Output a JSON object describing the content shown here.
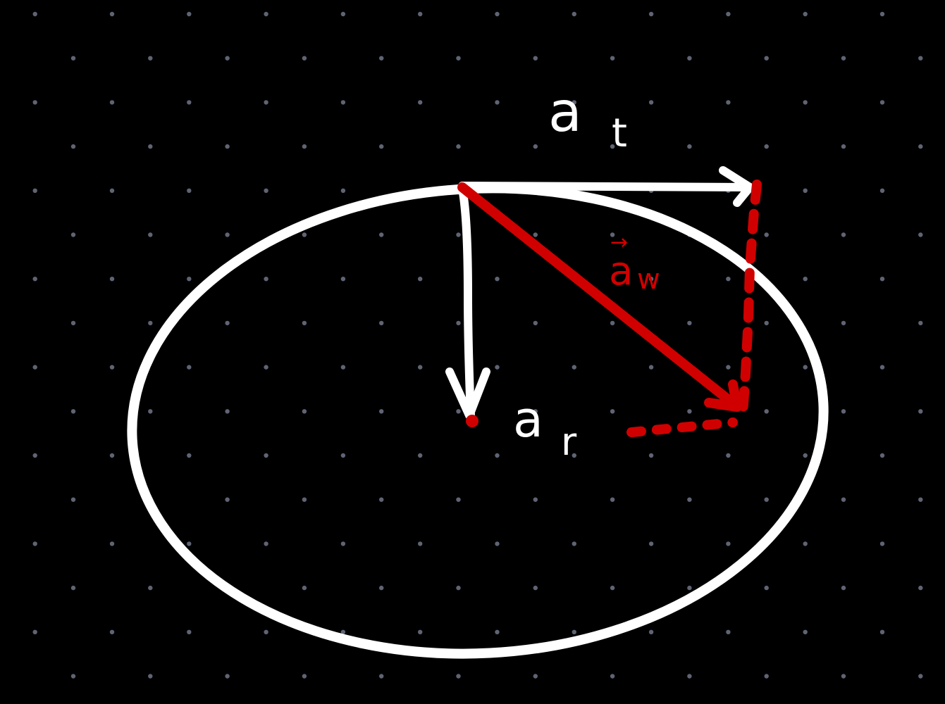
{
  "canvas": {
    "background_color": "#000000",
    "dot_color": "#5f6473",
    "ink_white": "#ffffff",
    "ink_red": "#d10000"
  },
  "labels": {
    "tangential_accel": {
      "main": "a",
      "subscript": "t",
      "color": "#ffffff"
    },
    "total_accel": {
      "main": "a",
      "subscript": "w",
      "arrow_symbol": "→",
      "color": "#d10000"
    },
    "radial_accel": {
      "main": "a",
      "subscript": "r",
      "color": "#ffffff"
    }
  },
  "shapes": {
    "orbit": {
      "kind": "ellipse",
      "stroke": "#ffffff"
    },
    "tangential_vector": {
      "kind": "arrow",
      "stroke": "#ffffff",
      "direction": "right"
    },
    "radial_vector": {
      "kind": "arrow",
      "stroke": "#ffffff",
      "direction": "down"
    },
    "total_vector": {
      "kind": "arrow",
      "stroke": "#d10000",
      "direction": "down-right"
    },
    "projection_vertical": {
      "kind": "dashed-line",
      "stroke": "#d10000"
    },
    "projection_horizontal": {
      "kind": "dashed-line",
      "stroke": "#d10000"
    }
  }
}
